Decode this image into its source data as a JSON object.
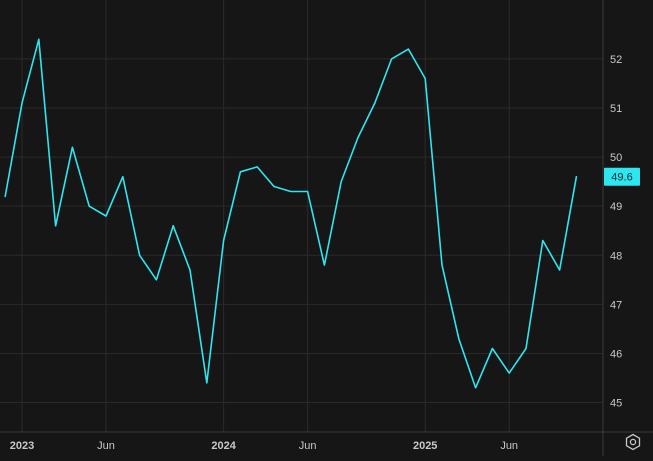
{
  "theme": {
    "background": "#161616",
    "grid": "#2a2a2a",
    "axis_line": "#3a3a3a",
    "tick_text": "#c8c8c8",
    "line": "#2ee6f0",
    "badge_bg": "#2ee6f0",
    "badge_text": "#0b2a2c"
  },
  "chart_data": {
    "type": "line",
    "x": [
      "2022-12",
      "2023-01",
      "2023-02",
      "2023-03",
      "2023-04",
      "2023-05",
      "2023-06",
      "2023-07",
      "2023-08",
      "2023-09",
      "2023-10",
      "2023-11",
      "2023-12",
      "2024-01",
      "2024-02",
      "2024-03",
      "2024-04",
      "2024-05",
      "2024-06",
      "2024-07",
      "2024-08",
      "2024-09",
      "2024-10",
      "2024-11",
      "2024-12",
      "2025-01",
      "2025-02",
      "2025-03",
      "2025-04",
      "2025-05",
      "2025-06",
      "2025-07",
      "2025-08",
      "2025-09",
      "2025-10"
    ],
    "values": [
      49.2,
      51.1,
      52.4,
      48.6,
      50.2,
      49.0,
      48.8,
      49.6,
      48.0,
      47.5,
      48.6,
      47.7,
      45.4,
      48.3,
      49.7,
      49.8,
      49.4,
      49.3,
      49.3,
      47.8,
      49.5,
      50.4,
      51.1,
      52.0,
      52.2,
      51.6,
      47.8,
      46.3,
      45.3,
      46.1,
      45.6,
      46.1,
      48.3,
      47.7,
      49.6
    ],
    "x_ticks": [
      {
        "date": "2023-01",
        "label": "2023",
        "bold": true
      },
      {
        "date": "2023-06",
        "label": "Jun",
        "bold": false
      },
      {
        "date": "2024-01",
        "label": "2024",
        "bold": true
      },
      {
        "date": "2024-06",
        "label": "Jun",
        "bold": false
      },
      {
        "date": "2025-01",
        "label": "2025",
        "bold": true
      },
      {
        "date": "2025-06",
        "label": "Jun",
        "bold": false
      }
    ],
    "y_ticks": [
      45,
      46,
      47,
      48,
      49,
      50,
      51,
      52
    ],
    "ylim": [
      44.4,
      53.2
    ],
    "last_value_label": "49.6",
    "grid": true,
    "y_axis_side": "right"
  },
  "controls": {
    "settings_icon": "settings-gear-icon"
  }
}
